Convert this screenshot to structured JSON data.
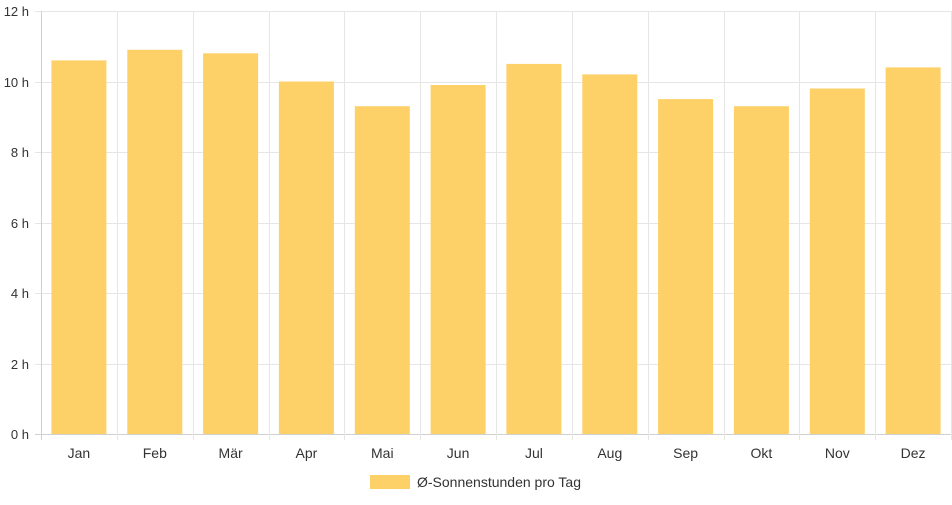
{
  "chart_data": {
    "type": "bar",
    "categories": [
      "Jan",
      "Feb",
      "Mär",
      "Apr",
      "Mai",
      "Jun",
      "Jul",
      "Aug",
      "Sep",
      "Okt",
      "Nov",
      "Dez"
    ],
    "series": [
      {
        "name": "Ø-Sonnenstunden pro Tag",
        "values": [
          10.6,
          10.9,
          10.8,
          10.0,
          9.3,
          9.9,
          10.5,
          10.2,
          9.5,
          9.3,
          9.8,
          10.4
        ],
        "color": "#fdd068"
      }
    ],
    "ylim": [
      0,
      12
    ],
    "y_ticks": [
      "0 h",
      "2 h",
      "4 h",
      "6 h",
      "8 h",
      "10 h",
      "12 h"
    ],
    "y_tick_values": [
      0,
      2,
      4,
      6,
      8,
      10,
      12
    ],
    "grid": true,
    "legend_position": "bottom-center"
  }
}
